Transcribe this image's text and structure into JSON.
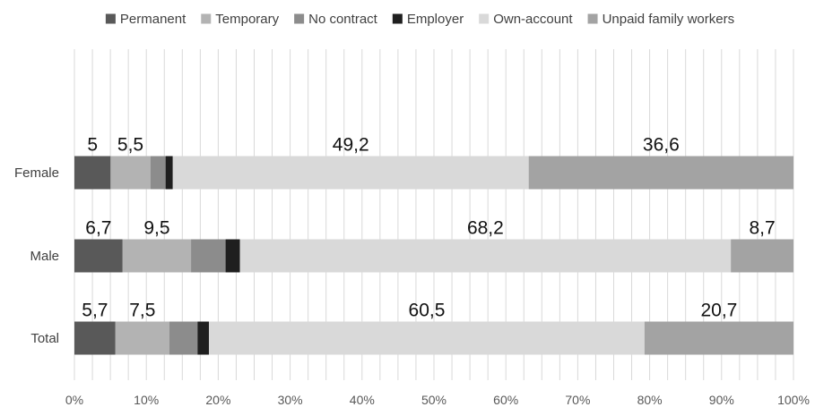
{
  "chart_data": {
    "type": "bar",
    "orientation": "horizontal",
    "stacked": true,
    "percent_stacked": true,
    "title": "",
    "xlabel": "",
    "ylabel": "",
    "xlim": [
      0,
      100
    ],
    "x_ticks": [
      "0%",
      "10%",
      "20%",
      "30%",
      "40%",
      "50%",
      "60%",
      "70%",
      "80%",
      "90%",
      "100%"
    ],
    "grid": "vertical",
    "legend_position": "top",
    "categories": [
      "Female",
      "Male",
      "Total"
    ],
    "series": [
      {
        "name": "Permanent",
        "color": "#595959",
        "values": [
          5,
          6.7,
          5.7
        ],
        "labels": [
          "5",
          "6,7",
          "5,7"
        ]
      },
      {
        "name": "Temporary",
        "color": "#b3b3b3",
        "values": [
          5.5,
          9.5,
          7.5
        ],
        "labels": [
          "5,5",
          "9,5",
          "7,5"
        ]
      },
      {
        "name": "No contract",
        "color": "#8c8c8c",
        "values": [
          2.1,
          4.8,
          3.9
        ],
        "labels": [
          "",
          "",
          ""
        ]
      },
      {
        "name": "Employer",
        "color": "#1f1f1f",
        "values": [
          1.0,
          2.0,
          1.6
        ],
        "labels": [
          "",
          "",
          ""
        ]
      },
      {
        "name": "Own-account",
        "color": "#d9d9d9",
        "values": [
          49.2,
          68.2,
          60.5
        ],
        "labels": [
          "49,2",
          "68,2",
          "60,5"
        ]
      },
      {
        "name": "Unpaid family workers",
        "color": "#a3a3a3",
        "values": [
          36.6,
          8.7,
          20.7
        ],
        "labels": [
          "36,6",
          "8,7",
          "20,7"
        ]
      }
    ]
  }
}
